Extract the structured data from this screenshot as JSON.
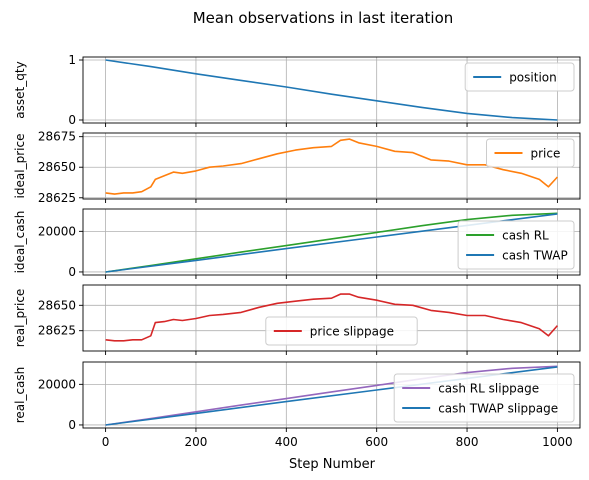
{
  "figure": {
    "title": "Mean observations in last iteration",
    "xlabel": "Step Number"
  },
  "colors": {
    "blue": "#1f77b4",
    "orange": "#ff7f0e",
    "green": "#2ca02c",
    "red": "#d62728",
    "purple": "#9467bd"
  },
  "chart_data": [
    {
      "type": "line",
      "ylabel": "asset_qty",
      "xlim": [
        -50,
        1050
      ],
      "ylim": [
        -0.05,
        1.05
      ],
      "x_ticks": [
        0,
        200,
        400,
        600,
        800,
        1000
      ],
      "y_ticks": [
        0,
        1
      ],
      "y_tick_labels": [
        "0",
        "1"
      ],
      "grid": true,
      "legend_position": "upper-right",
      "series": [
        {
          "name": "position",
          "color": "#1f77b4",
          "x": [
            0,
            100,
            200,
            300,
            400,
            500,
            600,
            700,
            800,
            900,
            1000
          ],
          "y": [
            1.0,
            0.89,
            0.77,
            0.66,
            0.55,
            0.43,
            0.32,
            0.21,
            0.11,
            0.04,
            0.0
          ]
        }
      ]
    },
    {
      "type": "line",
      "ylabel": "ideal_price",
      "xlim": [
        -50,
        1050
      ],
      "ylim": [
        28624,
        28678
      ],
      "x_ticks": [
        0,
        200,
        400,
        600,
        800,
        1000
      ],
      "y_ticks": [
        28625,
        28650,
        28675
      ],
      "y_tick_labels": [
        "28625",
        "28650",
        "28675"
      ],
      "grid": true,
      "legend_position": "upper-right",
      "series": [
        {
          "name": "price",
          "color": "#ff7f0e",
          "x": [
            0,
            20,
            40,
            60,
            80,
            100,
            110,
            130,
            150,
            170,
            200,
            230,
            260,
            300,
            340,
            380,
            420,
            460,
            500,
            520,
            540,
            560,
            600,
            640,
            680,
            720,
            760,
            800,
            840,
            880,
            920,
            960,
            980,
            1000
          ],
          "y": [
            28629,
            28628,
            28629,
            28629,
            28630,
            28634,
            28640,
            28643,
            28646,
            28645,
            28647,
            28650,
            28651,
            28653,
            28657,
            28661,
            28664,
            28666,
            28667,
            28672,
            28673,
            28670,
            28667,
            28663,
            28662,
            28656,
            28655,
            28652,
            28652,
            28648,
            28645,
            28640,
            28634,
            28642
          ]
        }
      ]
    },
    {
      "type": "line",
      "ylabel": "ideal_cash",
      "xlim": [
        -50,
        1050
      ],
      "ylim": [
        -1500,
        31000
      ],
      "x_ticks": [
        0,
        200,
        400,
        600,
        800,
        1000
      ],
      "y_ticks": [
        0,
        20000
      ],
      "y_tick_labels": [
        "0",
        "20000"
      ],
      "grid": true,
      "legend_position": "lower-right",
      "series": [
        {
          "name": "cash RL",
          "color": "#2ca02c",
          "x": [
            0,
            100,
            200,
            300,
            400,
            500,
            600,
            700,
            800,
            900,
            1000
          ],
          "y": [
            0,
            3200,
            6500,
            9800,
            13000,
            16300,
            19500,
            22800,
            25800,
            27900,
            28900
          ]
        },
        {
          "name": "cash TWAP",
          "color": "#1f77b4",
          "x": [
            0,
            200,
            400,
            600,
            800,
            1000
          ],
          "y": [
            0,
            5700,
            11500,
            17200,
            22900,
            28600
          ]
        }
      ]
    },
    {
      "type": "line",
      "ylabel": "real_price",
      "xlim": [
        -50,
        1050
      ],
      "ylim": [
        28605,
        28670
      ],
      "x_ticks": [
        0,
        200,
        400,
        600,
        800,
        1000
      ],
      "y_ticks": [
        28625,
        28650
      ],
      "y_tick_labels": [
        "28625",
        "28650"
      ],
      "grid": true,
      "legend_position": "lower-center",
      "series": [
        {
          "name": "price slippage",
          "color": "#d62728",
          "x": [
            0,
            20,
            40,
            60,
            80,
            100,
            110,
            130,
            150,
            170,
            200,
            230,
            260,
            300,
            340,
            380,
            420,
            460,
            500,
            520,
            540,
            560,
            600,
            640,
            680,
            720,
            760,
            800,
            840,
            880,
            920,
            960,
            980,
            1000
          ],
          "y": [
            28616,
            28615,
            28615,
            28616,
            28616,
            28620,
            28633,
            28634,
            28636,
            28635,
            28637,
            28640,
            28641,
            28643,
            28648,
            28652,
            28654,
            28656,
            28657,
            28661,
            28661,
            28658,
            28655,
            28651,
            28650,
            28645,
            28643,
            28640,
            28640,
            28636,
            28633,
            28627,
            28620,
            28630
          ]
        }
      ]
    },
    {
      "type": "line",
      "ylabel": "real_cash",
      "xlim": [
        -50,
        1050
      ],
      "ylim": [
        -1500,
        31000
      ],
      "x_ticks": [
        0,
        200,
        400,
        600,
        800,
        1000
      ],
      "x_tick_labels": [
        "0",
        "200",
        "400",
        "600",
        "800",
        "1000"
      ],
      "y_ticks": [
        0,
        20000
      ],
      "y_tick_labels": [
        "0",
        "20000"
      ],
      "grid": true,
      "legend_position": "lower-right",
      "series": [
        {
          "name": "cash RL slippage",
          "color": "#9467bd",
          "x": [
            0,
            100,
            200,
            300,
            400,
            500,
            600,
            700,
            800,
            900,
            1000
          ],
          "y": [
            0,
            3200,
            6500,
            9800,
            13000,
            16300,
            19500,
            22800,
            25800,
            27900,
            28900
          ]
        },
        {
          "name": "cash TWAP slippage",
          "color": "#1f77b4",
          "x": [
            0,
            200,
            400,
            600,
            800,
            1000
          ],
          "y": [
            0,
            5700,
            11500,
            17200,
            22900,
            28600
          ]
        }
      ]
    }
  ]
}
